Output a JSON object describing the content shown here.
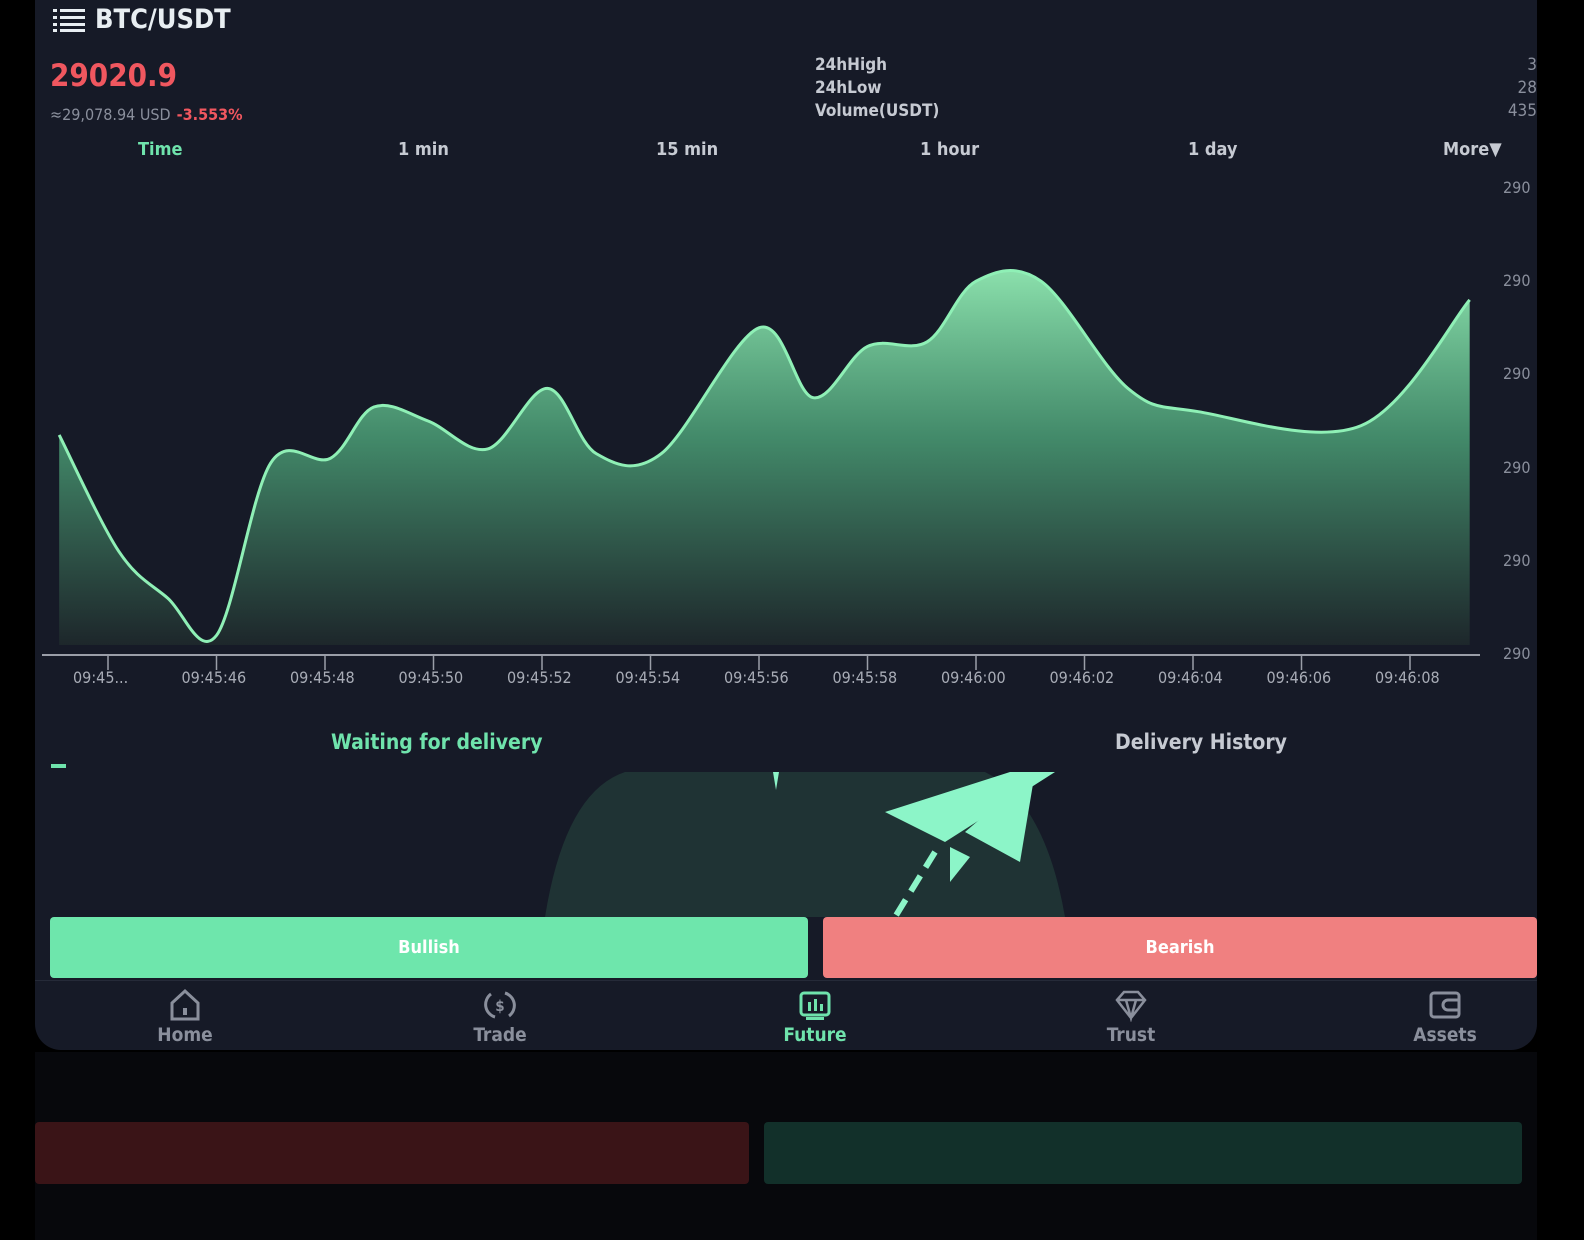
{
  "header": {
    "pair": "BTC/USDT",
    "price": "29020.9",
    "usd_value": "≈29,078.94 USD",
    "change": "-3.553%"
  },
  "stats": {
    "labels": [
      "24hHigh",
      "24hLow",
      "Volume(USDT)"
    ],
    "values_visible": [
      "3",
      "28",
      "435"
    ]
  },
  "intervals": [
    {
      "label": "Time",
      "active": true
    },
    {
      "label": "1 min"
    },
    {
      "label": "15 min"
    },
    {
      "label": "1 hour"
    },
    {
      "label": "1 day"
    },
    {
      "label": "More▼"
    }
  ],
  "colors": {
    "accent": "#6fe3ac",
    "down": "#f0575f",
    "bullish": "#6ee6ac",
    "bearish": "#f08080",
    "background": "#161a27"
  },
  "chart_data": {
    "type": "area",
    "x_tick_labels": [
      "09:45...",
      "09:45:46",
      "09:45:48",
      "09:45:50",
      "09:45:52",
      "09:45:54",
      "09:45:56",
      "09:45:58",
      "09:46:00",
      "09:46:02",
      "09:46:04",
      "09:46:06",
      "09:46:08"
    ],
    "y_tick_labels": [
      "290",
      "290",
      "290",
      "290",
      "290",
      "290"
    ],
    "ylim": [
      0,
      100
    ],
    "grid": false,
    "x": [
      "09:45:43.1",
      "09:45:44.2",
      "09:45:45.1",
      "09:45:46.0",
      "09:45:47.0",
      "09:45:48.1",
      "09:45:48.9",
      "09:45:49.9",
      "09:45:51.0",
      "09:45:52.1",
      "09:45:53.0",
      "09:45:54.2",
      "09:45:56.0",
      "09:45:57.0",
      "09:45:58.0",
      "09:45:59.1",
      "09:46:00.0",
      "09:46:01.2",
      "09:46:02.8",
      "09:46:04.1",
      "09:46:07.1",
      "09:46:09.1"
    ],
    "values": [
      47,
      22,
      12,
      4,
      41,
      42,
      53,
      50,
      44,
      57,
      43,
      43,
      70,
      55,
      66,
      67,
      80,
      80,
      57,
      52,
      49,
      76
    ]
  },
  "orders": {
    "tabs": [
      {
        "label": "Waiting for delivery",
        "active": true
      },
      {
        "label": "Delivery History"
      }
    ]
  },
  "actions": {
    "bullish": "Bullish",
    "bearish": "Bearish"
  },
  "nav": [
    {
      "label": "Home",
      "icon": "home-icon"
    },
    {
      "label": "Trade",
      "icon": "trade-icon"
    },
    {
      "label": "Future",
      "icon": "future-icon",
      "active": true
    },
    {
      "label": "Trust",
      "icon": "diamond-icon"
    },
    {
      "label": "Assets",
      "icon": "wallet-icon"
    }
  ]
}
